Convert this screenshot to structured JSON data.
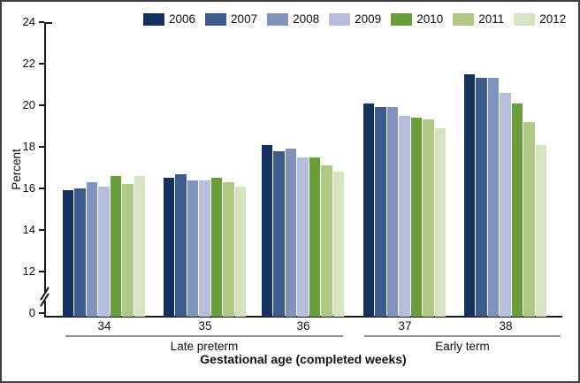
{
  "chart_data": {
    "type": "bar",
    "title": "",
    "ylabel": "Percent",
    "xlabel": "Gestational age (completed weeks)",
    "ylim": [
      0,
      24
    ],
    "axis_break_between": [
      0,
      12
    ],
    "grid": false,
    "legend_position": "top",
    "y_ticks": [
      "24",
      "22",
      "20",
      "18",
      "16",
      "14",
      "12",
      "0"
    ],
    "categories": [
      "34",
      "35",
      "36",
      "37",
      "38"
    ],
    "sections": [
      {
        "label": "Late preterm",
        "categories": [
          "34",
          "35",
          "36"
        ]
      },
      {
        "label": "Early term",
        "categories": [
          "37",
          "38"
        ]
      }
    ],
    "series": [
      {
        "name": "2006",
        "color": "#13305f",
        "values": [
          15.9,
          16.5,
          18.1,
          20.1,
          21.5
        ]
      },
      {
        "name": "2007",
        "color": "#3c5a8b",
        "values": [
          16.0,
          16.7,
          17.8,
          19.9,
          21.3
        ]
      },
      {
        "name": "2008",
        "color": "#8093bb",
        "values": [
          16.3,
          16.4,
          17.9,
          19.9,
          21.3
        ]
      },
      {
        "name": "2009",
        "color": "#b5bedb",
        "values": [
          16.1,
          16.4,
          17.5,
          19.5,
          20.6
        ]
      },
      {
        "name": "2010",
        "color": "#699e38",
        "values": [
          16.6,
          16.5,
          17.5,
          19.4,
          20.1
        ]
      },
      {
        "name": "2011",
        "color": "#aeca86",
        "values": [
          16.2,
          16.3,
          17.1,
          19.3,
          19.2
        ]
      },
      {
        "name": "2012",
        "color": "#d5e4c0",
        "values": [
          16.6,
          16.1,
          16.8,
          18.9,
          18.1
        ]
      }
    ],
    "colors": {
      "axis": "#1a1a1a",
      "bracket_line": "#8f8f8f",
      "frame_border": "#3f3f3f",
      "background": "#ffffff"
    }
  }
}
